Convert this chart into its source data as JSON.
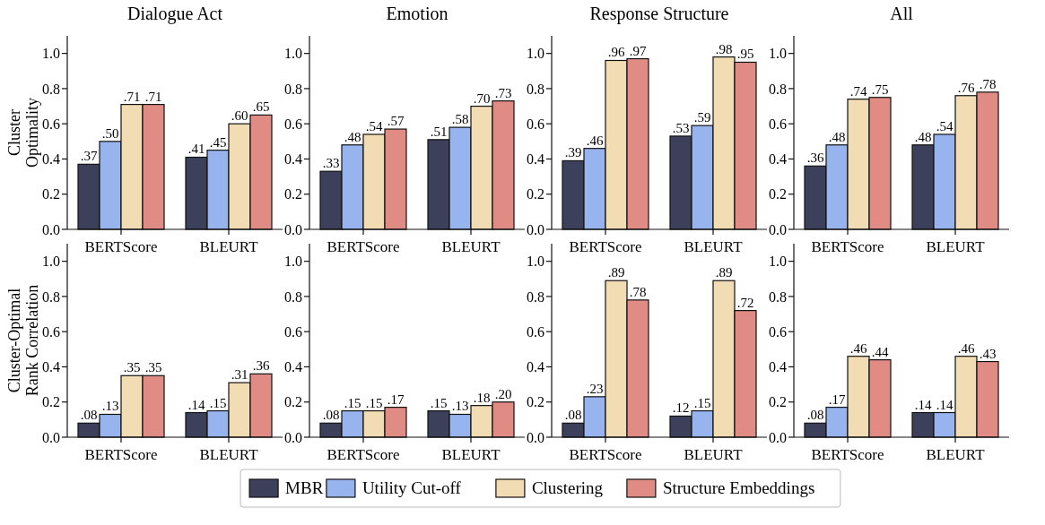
{
  "chart_data": [
    {
      "type": "bar",
      "title": "Dialogue Act",
      "ylabel": "Cluster\nOptimality",
      "categories": [
        "BERTScore",
        "BLEURT"
      ],
      "ylim": [
        0,
        1.1
      ],
      "yticks": [
        {
          "value": 0,
          "label": "0.0"
        },
        {
          "value": 0.2,
          "label": "0.2"
        },
        {
          "value": 0.4,
          "label": "0.4"
        },
        {
          "value": 0.6,
          "label": "0.6"
        },
        {
          "value": 0.8,
          "label": "0.8"
        },
        {
          "value": 1,
          "label": "1.0"
        }
      ],
      "legend": "bottom",
      "series": [
        {
          "name": "MBR",
          "color": "#3d405b",
          "values": [
            0.37,
            0.41
          ],
          "value_labels": [
            ".37",
            ".41"
          ]
        },
        {
          "name": "Utility Cut-off",
          "color": "#98b4ee",
          "values": [
            0.5,
            0.45
          ],
          "value_labels": [
            ".50",
            ".45"
          ]
        },
        {
          "name": "Clustering",
          "color": "#f2dcb3",
          "values": [
            0.71,
            0.6
          ],
          "value_labels": [
            ".71",
            ".60"
          ]
        },
        {
          "name": "Structure Embeddings",
          "color": "#e08c85",
          "values": [
            0.71,
            0.65
          ],
          "value_labels": [
            ".71",
            ".65"
          ]
        }
      ]
    },
    {
      "type": "bar",
      "title": "Emotion",
      "categories": [
        "BERTScore",
        "BLEURT"
      ],
      "ylim": [
        0,
        1.1
      ],
      "yticks": [
        {
          "value": 0,
          "label": "0.0"
        },
        {
          "value": 0.2,
          "label": "0.2"
        },
        {
          "value": 0.4,
          "label": "0.4"
        },
        {
          "value": 0.6,
          "label": "0.6"
        },
        {
          "value": 0.8,
          "label": "0.8"
        },
        {
          "value": 1,
          "label": "1.0"
        }
      ],
      "series": [
        {
          "color": "#3d405b",
          "values": [
            0.33,
            0.51
          ],
          "value_labels": [
            ".33",
            ".51"
          ]
        },
        {
          "color": "#98b4ee",
          "values": [
            0.48,
            0.58
          ],
          "value_labels": [
            ".48",
            ".58"
          ]
        },
        {
          "color": "#f2dcb3",
          "values": [
            0.54,
            0.7
          ],
          "value_labels": [
            ".54",
            ".70"
          ]
        },
        {
          "color": "#e08c85",
          "values": [
            0.57,
            0.73
          ],
          "value_labels": [
            ".57",
            ".73"
          ]
        }
      ]
    },
    {
      "type": "bar",
      "title": "Response Structure",
      "categories": [
        "BERTScore",
        "BLEURT"
      ],
      "ylim": [
        0,
        1.1
      ],
      "yticks": [
        {
          "value": 0,
          "label": "0.0"
        },
        {
          "value": 0.2,
          "label": "0.2"
        },
        {
          "value": 0.4,
          "label": "0.4"
        },
        {
          "value": 0.6,
          "label": "0.6"
        },
        {
          "value": 0.8,
          "label": "0.8"
        },
        {
          "value": 1,
          "label": "1.0"
        }
      ],
      "series": [
        {
          "color": "#3d405b",
          "values": [
            0.39,
            0.53
          ],
          "value_labels": [
            ".39",
            ".53"
          ]
        },
        {
          "color": "#98b4ee",
          "values": [
            0.46,
            0.59
          ],
          "value_labels": [
            ".46",
            ".59"
          ]
        },
        {
          "color": "#f2dcb3",
          "values": [
            0.96,
            0.98
          ],
          "value_labels": [
            ".96",
            ".98"
          ]
        },
        {
          "color": "#e08c85",
          "values": [
            0.97,
            0.95
          ],
          "value_labels": [
            ".97",
            ".95"
          ]
        }
      ]
    },
    {
      "type": "bar",
      "title": "All",
      "categories": [
        "BERTScore",
        "BLEURT"
      ],
      "ylim": [
        0,
        1.1
      ],
      "yticks": [
        {
          "value": 0,
          "label": "0.0"
        },
        {
          "value": 0.2,
          "label": "0.2"
        },
        {
          "value": 0.4,
          "label": "0.4"
        },
        {
          "value": 0.6,
          "label": "0.6"
        },
        {
          "value": 0.8,
          "label": "0.8"
        },
        {
          "value": 1,
          "label": "1.0"
        }
      ],
      "series": [
        {
          "color": "#3d405b",
          "values": [
            0.36,
            0.48
          ],
          "value_labels": [
            ".36",
            ".48"
          ]
        },
        {
          "color": "#98b4ee",
          "values": [
            0.48,
            0.54
          ],
          "value_labels": [
            ".48",
            ".54"
          ]
        },
        {
          "color": "#f2dcb3",
          "values": [
            0.74,
            0.76
          ],
          "value_labels": [
            ".74",
            ".76"
          ]
        },
        {
          "color": "#e08c85",
          "values": [
            0.75,
            0.78
          ],
          "value_labels": [
            ".75",
            ".78"
          ]
        }
      ]
    },
    {
      "type": "bar",
      "ylabel": "Cluster-Optimal\nRank Correlation",
      "categories": [
        "BERTScore",
        "BLEURT"
      ],
      "ylim": [
        0,
        1.1
      ],
      "yticks": [
        {
          "value": 0,
          "label": "0.0"
        },
        {
          "value": 0.2,
          "label": "0.2"
        },
        {
          "value": 0.4,
          "label": "0.4"
        },
        {
          "value": 0.6,
          "label": "0.6"
        },
        {
          "value": 0.8,
          "label": "0.8"
        },
        {
          "value": 1,
          "label": "1.0"
        }
      ],
      "series": [
        {
          "color": "#3d405b",
          "values": [
            0.08,
            0.14
          ],
          "value_labels": [
            ".08",
            ".14"
          ]
        },
        {
          "color": "#98b4ee",
          "values": [
            0.13,
            0.15
          ],
          "value_labels": [
            ".13",
            ".15"
          ]
        },
        {
          "color": "#f2dcb3",
          "values": [
            0.35,
            0.31
          ],
          "value_labels": [
            ".35",
            ".31"
          ]
        },
        {
          "color": "#e08c85",
          "values": [
            0.35,
            0.36
          ],
          "value_labels": [
            ".35",
            ".36"
          ]
        }
      ]
    },
    {
      "type": "bar",
      "categories": [
        "BERTScore",
        "BLEURT"
      ],
      "ylim": [
        0,
        1.1
      ],
      "yticks": [
        {
          "value": 0,
          "label": "0.0"
        },
        {
          "value": 0.2,
          "label": "0.2"
        },
        {
          "value": 0.4,
          "label": "0.4"
        },
        {
          "value": 0.6,
          "label": "0.6"
        },
        {
          "value": 0.8,
          "label": "0.8"
        },
        {
          "value": 1,
          "label": "1.0"
        }
      ],
      "series": [
        {
          "color": "#3d405b",
          "values": [
            0.08,
            0.15
          ],
          "value_labels": [
            ".08",
            ".15"
          ]
        },
        {
          "color": "#98b4ee",
          "values": [
            0.15,
            0.13
          ],
          "value_labels": [
            ".15",
            ".13"
          ]
        },
        {
          "color": "#f2dcb3",
          "values": [
            0.15,
            0.18
          ],
          "value_labels": [
            ".15",
            ".18"
          ]
        },
        {
          "color": "#e08c85",
          "values": [
            0.17,
            0.2
          ],
          "value_labels": [
            ".17",
            ".20"
          ]
        }
      ]
    },
    {
      "type": "bar",
      "categories": [
        "BERTScore",
        "BLEURT"
      ],
      "ylim": [
        0,
        1.1
      ],
      "yticks": [
        {
          "value": 0,
          "label": "0.0"
        },
        {
          "value": 0.2,
          "label": "0.2"
        },
        {
          "value": 0.4,
          "label": "0.4"
        },
        {
          "value": 0.6,
          "label": "0.6"
        },
        {
          "value": 0.8,
          "label": "0.8"
        },
        {
          "value": 1,
          "label": "1.0"
        }
      ],
      "series": [
        {
          "color": "#3d405b",
          "values": [
            0.08,
            0.12
          ],
          "value_labels": [
            ".08",
            ".12"
          ]
        },
        {
          "color": "#98b4ee",
          "values": [
            0.23,
            0.15
          ],
          "value_labels": [
            ".23",
            ".15"
          ]
        },
        {
          "color": "#f2dcb3",
          "values": [
            0.89,
            0.89
          ],
          "value_labels": [
            ".89",
            ".89"
          ]
        },
        {
          "color": "#e08c85",
          "values": [
            0.78,
            0.72
          ],
          "value_labels": [
            ".78",
            ".72"
          ]
        }
      ]
    },
    {
      "type": "bar",
      "categories": [
        "BERTScore",
        "BLEURT"
      ],
      "ylim": [
        0,
        1.1
      ],
      "yticks": [
        {
          "value": 0,
          "label": "0.0"
        },
        {
          "value": 0.2,
          "label": "0.2"
        },
        {
          "value": 0.4,
          "label": "0.4"
        },
        {
          "value": 0.6,
          "label": "0.6"
        },
        {
          "value": 0.8,
          "label": "0.8"
        },
        {
          "value": 1,
          "label": "1.0"
        }
      ],
      "series": [
        {
          "color": "#3d405b",
          "values": [
            0.08,
            0.14
          ],
          "value_labels": [
            ".08",
            ".14"
          ]
        },
        {
          "color": "#98b4ee",
          "values": [
            0.17,
            0.14
          ],
          "value_labels": [
            ".17",
            ".14"
          ]
        },
        {
          "color": "#f2dcb3",
          "values": [
            0.46,
            0.46
          ],
          "value_labels": [
            ".46",
            ".46"
          ]
        },
        {
          "color": "#e08c85",
          "values": [
            0.44,
            0.43
          ],
          "value_labels": [
            ".44",
            ".43"
          ]
        }
      ]
    }
  ]
}
